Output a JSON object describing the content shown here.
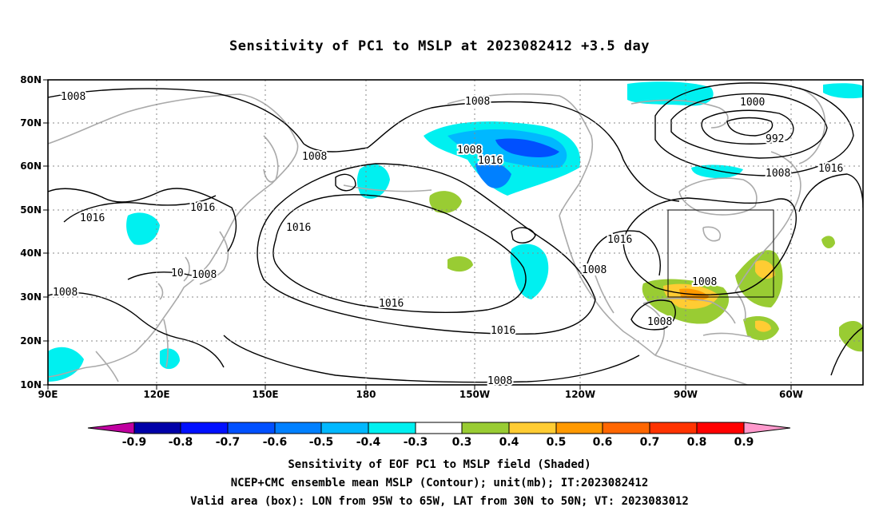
{
  "title": "Sensitivity of PC1 to MSLP at 2023082412 +3.5 day",
  "lat_labels": [
    "80N",
    "70N",
    "60N",
    "50N",
    "40N",
    "30N",
    "20N",
    "10N"
  ],
  "lon_labels": [
    "90E",
    "120E",
    "150E",
    "180",
    "150W",
    "120W",
    "90W",
    "60W"
  ],
  "contour_labels": [
    {
      "text": "1008"
    },
    {
      "text": "1008"
    },
    {
      "text": "1008"
    },
    {
      "text": "1016"
    },
    {
      "text": "1000"
    },
    {
      "text": "992"
    },
    {
      "text": "1008"
    },
    {
      "text": "1016"
    },
    {
      "text": "1008"
    },
    {
      "text": "1016"
    },
    {
      "text": "1016"
    },
    {
      "text": "1016"
    },
    {
      "text": "1008"
    },
    {
      "text": "1008"
    },
    {
      "text": "1008"
    },
    {
      "text": "1016"
    },
    {
      "text": "1016"
    },
    {
      "text": "1008"
    },
    {
      "text": "1008"
    },
    {
      "text": "1016"
    },
    {
      "text": "1008"
    },
    {
      "text": "10"
    }
  ],
  "colorbar": {
    "labels": [
      "-0.9",
      "-0.8",
      "-0.7",
      "-0.6",
      "-0.5",
      "-0.4",
      "-0.3",
      "0.3",
      "0.4",
      "0.5",
      "0.6",
      "0.7",
      "0.8",
      "0.9"
    ],
    "colors": [
      "#c000a0",
      "#0000a8",
      "#0010ff",
      "#0050ff",
      "#0080ff",
      "#00b8ff",
      "#00f0f0",
      "#ffffff",
      "#99cc33",
      "#ffcc33",
      "#ff9900",
      "#ff6600",
      "#ff3300",
      "#ff0000",
      "#ff99cc"
    ]
  },
  "footer": {
    "line1": "Sensitivity of EOF PC1 to MSLP field (Shaded)",
    "line2": "NCEP+CMC ensemble mean MSLP (Contour); unit(mb); IT:2023082412",
    "line3": "Valid area (box): LON from 95W to 65W, LAT from 30N to 50N; VT: 2023083012"
  },
  "colors": {
    "coast": "#aaaaaa",
    "contour": "#000000",
    "grid": "#888888"
  }
}
